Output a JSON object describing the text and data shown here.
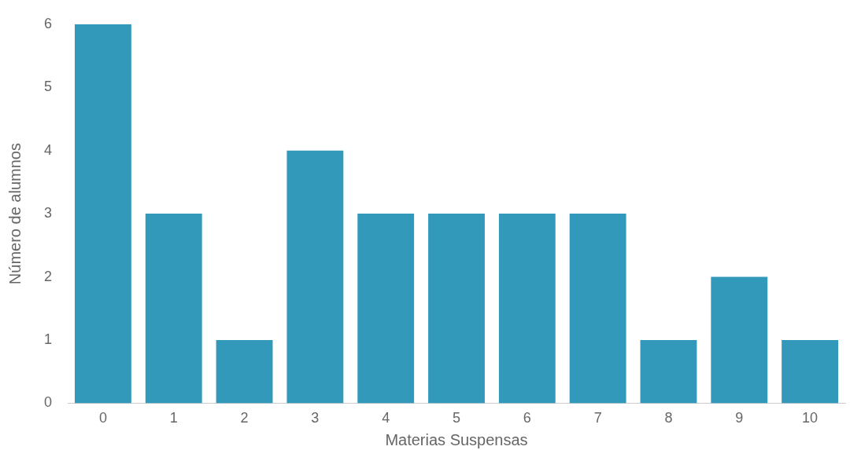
{
  "chart_data": {
    "type": "bar",
    "xlabel": "Materias Suspensas",
    "ylabel": "Número de alumnos",
    "categories": [
      "0",
      "1",
      "2",
      "3",
      "4",
      "5",
      "6",
      "7",
      "8",
      "9",
      "10"
    ],
    "values": [
      6,
      3,
      1,
      4,
      3,
      3,
      3,
      3,
      1,
      2,
      1
    ],
    "color": "#3399bb",
    "ylim": [
      0,
      6
    ],
    "yticks": [
      0,
      1,
      2,
      3,
      4,
      5,
      6
    ],
    "grid": false,
    "legend": false
  }
}
